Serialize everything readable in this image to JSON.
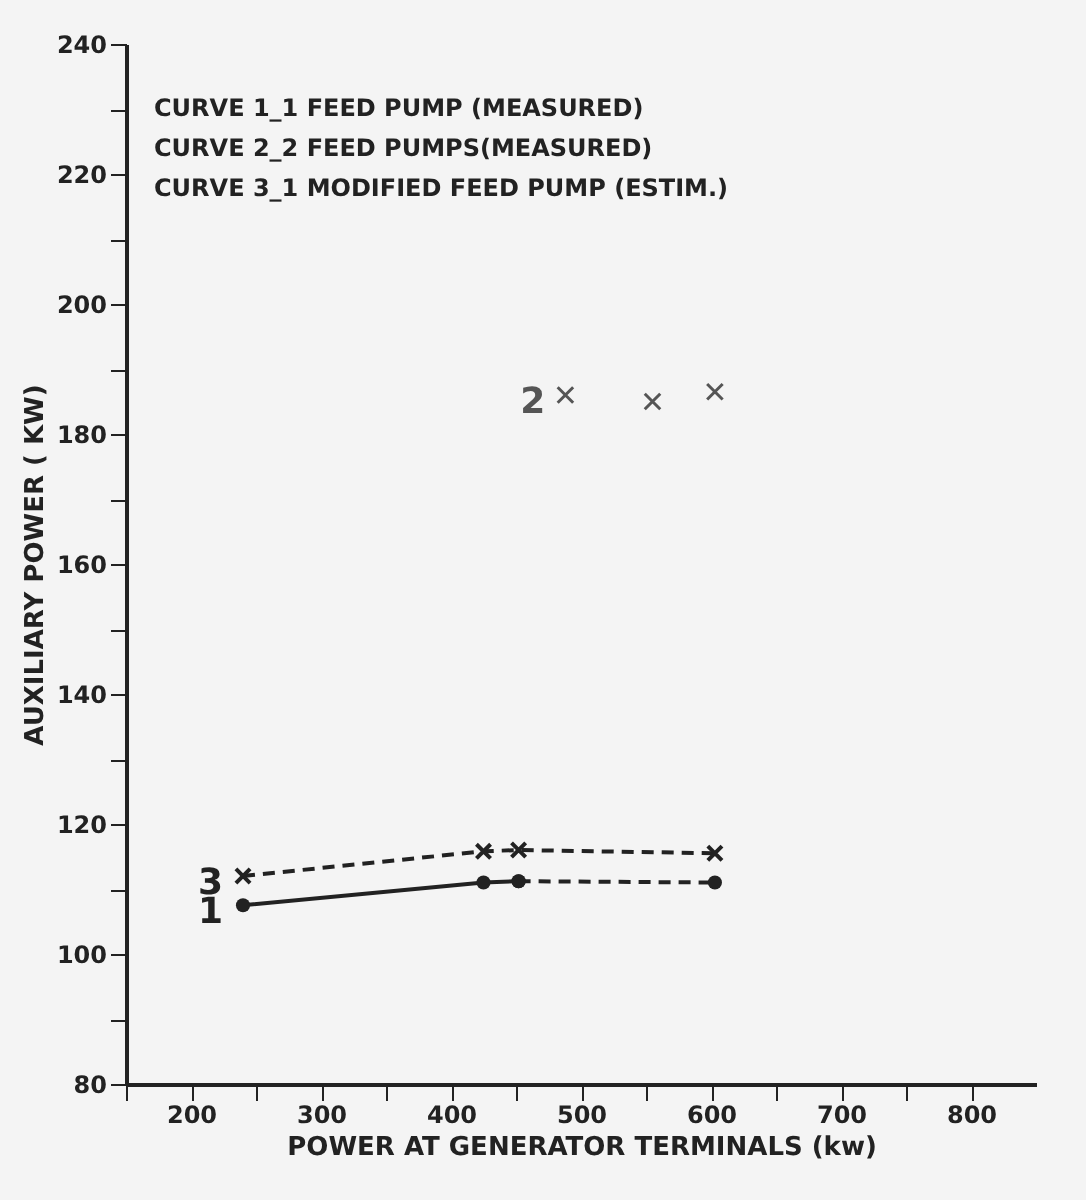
{
  "chart_data": {
    "type": "line",
    "xlabel": "POWER AT GENERATOR TERMINALS (kw)",
    "ylabel": "AUXILIARY POWER ( KW)",
    "annotations": [
      "CURVE 1_1 FEED PUMP (MEASURED)",
      "CURVE 2_2 FEED PUMPS(MEASURED)",
      "CURVE 3_1 MODIFIED FEED PUMP (ESTIM.)"
    ],
    "xlim": [
      150,
      850
    ],
    "ylim": [
      80,
      240
    ],
    "xticks": [
      {
        "value": 150,
        "label": null
      },
      200,
      {
        "value": 250,
        "label": null
      },
      300,
      {
        "value": 350,
        "label": null
      },
      400,
      {
        "value": 450,
        "label": null
      },
      500,
      {
        "value": 550,
        "label": null
      },
      600,
      {
        "value": 650,
        "label": null
      },
      700,
      {
        "value": 750,
        "label": null
      },
      800
    ],
    "yticks": [
      80,
      {
        "value": 90,
        "label": null
      },
      100,
      {
        "value": 110,
        "label": null
      },
      120,
      {
        "value": 130,
        "label": null
      },
      140,
      {
        "value": 150,
        "label": null
      },
      160,
      {
        "value": 170,
        "label": null
      },
      180,
      {
        "value": 190,
        "label": null
      },
      200,
      {
        "value": 210,
        "label": null
      },
      220,
      {
        "value": 230,
        "label": null
      },
      240
    ],
    "grid": false,
    "legend": false,
    "series": [
      {
        "name": "1",
        "line_style": "solid",
        "marker": "circle",
        "color": "#222222",
        "x": [
          240,
          425,
          452
        ],
        "values": [
          107.5,
          111,
          111.2
        ]
      },
      {
        "line_style": "dashed",
        "marker": "circle",
        "color": "#222222",
        "x": [
          452,
          603
        ],
        "values": [
          111.2,
          111
        ]
      },
      {
        "name": "2",
        "type": "scatter",
        "marker": "cross",
        "color": "#555555",
        "x": [
          488,
          555,
          603
        ],
        "values": [
          186,
          185,
          186.5
        ]
      },
      {
        "name": "3",
        "line_style": "dashed",
        "marker": "cross",
        "color": "#222222",
        "x": [
          240,
          425,
          452,
          603
        ],
        "values": [
          112,
          115.8,
          116,
          115.5
        ]
      }
    ]
  }
}
